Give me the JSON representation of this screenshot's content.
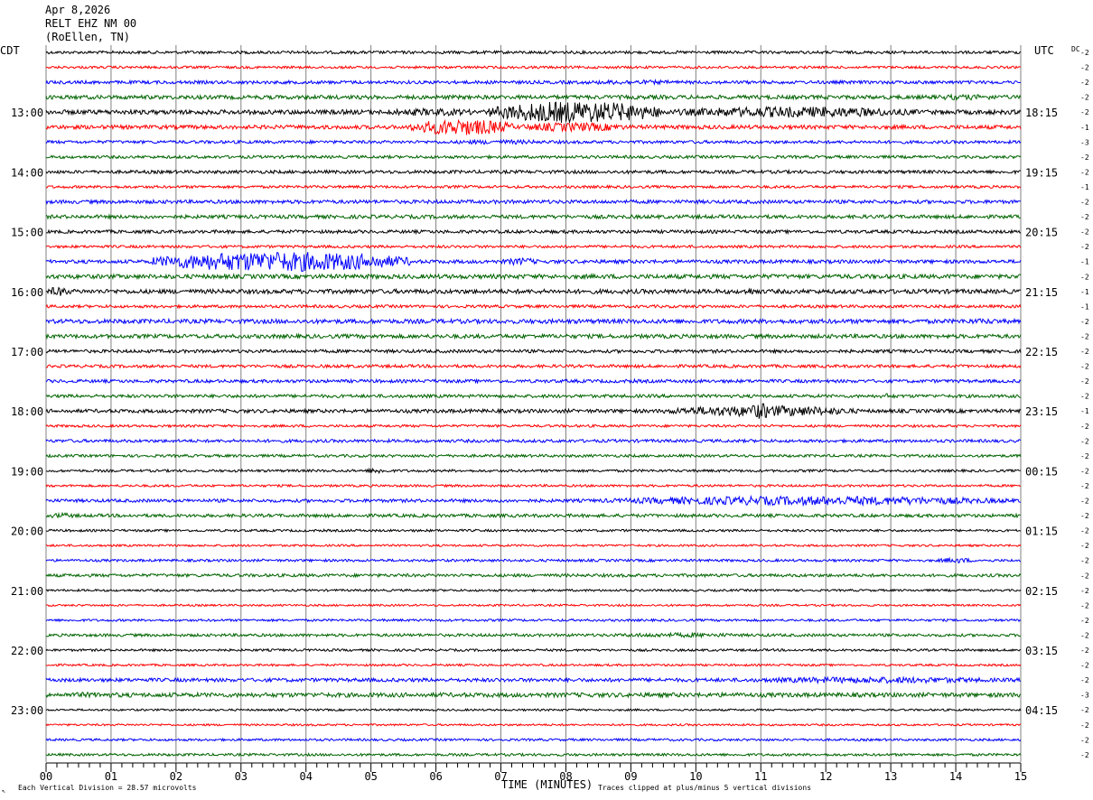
{
  "header": {
    "date": "Apr 8,2026",
    "station": "RELT EHZ NM 00",
    "location": "(RoEllen, TN)"
  },
  "labels": {
    "left_timezone": "CDT",
    "right_timezone": "UTC",
    "dc_label": "DC",
    "x_axis_title": "TIME (MINUTES)",
    "footer_left": "Each Vertical Division =   28.57 microvolts",
    "footer_right": "Traces clipped at plus/minus 5 vertical divisions",
    "corner_mark": "↖"
  },
  "chart_data": {
    "type": "line",
    "x_ticks": [
      "00",
      "01",
      "02",
      "03",
      "04",
      "05",
      "06",
      "07",
      "08",
      "09",
      "10",
      "11",
      "12",
      "13",
      "14",
      "15"
    ],
    "xlim": [
      0,
      15
    ],
    "trace_colors": [
      "#000000",
      "#ff0000",
      "#0000ff",
      "#006400"
    ],
    "left_hour_labels": [
      "13:00",
      "14:00",
      "15:00",
      "16:00",
      "17:00",
      "18:00",
      "19:00",
      "20:00",
      "21:00",
      "22:00",
      "23:00"
    ],
    "right_hour_labels": [
      "18:15",
      "19:15",
      "20:15",
      "21:15",
      "22:15",
      "23:15",
      "00:15",
      "01:15",
      "02:15",
      "03:15",
      "04:15"
    ],
    "dc_offsets": [
      "-2",
      "-2",
      "-2",
      "-2",
      "-2",
      "-1",
      "-3",
      "-2",
      "-2",
      "-1",
      "-2",
      "-2",
      "-2",
      "-2",
      "-1",
      "-2",
      "-1",
      "-1",
      "-2",
      "-2",
      "-2",
      "-2",
      "-2",
      "-2",
      "-1",
      "-2",
      "-2",
      "-2",
      "-2",
      "-2",
      "-2",
      "-2",
      "-2",
      "-2",
      "-2",
      "-2",
      "-2",
      "-2",
      "-2",
      "-2",
      "-2",
      "-2",
      "-2",
      "-3",
      "-2",
      "-2",
      "-2",
      "-2"
    ],
    "traces": [
      {
        "noise": 1.6,
        "events": []
      },
      {
        "noise": 1.4,
        "events": []
      },
      {
        "noise": 1.8,
        "events": [
          {
            "start": 8.0,
            "end": 10.0,
            "amp": 2.5
          }
        ]
      },
      {
        "noise": 2.2,
        "events": [
          {
            "start": 13.3,
            "end": 15.0,
            "amp": 3
          }
        ]
      },
      {
        "noise": 2.5,
        "events": [
          {
            "start": 6.8,
            "end": 9.5,
            "amp": 12
          },
          {
            "start": 9.5,
            "end": 13.5,
            "amp": 6
          },
          {
            "start": 5.0,
            "end": 6.8,
            "amp": 4
          }
        ]
      },
      {
        "noise": 2.2,
        "events": [
          {
            "start": 5.6,
            "end": 7.2,
            "amp": 9
          },
          {
            "start": 7.2,
            "end": 9.0,
            "amp": 5
          }
        ]
      },
      {
        "noise": 1.7,
        "events": [
          {
            "start": 6.0,
            "end": 8.0,
            "amp": 2.5
          }
        ]
      },
      {
        "noise": 1.6,
        "events": []
      },
      {
        "noise": 1.8,
        "events": []
      },
      {
        "noise": 1.5,
        "events": []
      },
      {
        "noise": 2.0,
        "events": []
      },
      {
        "noise": 2.0,
        "events": []
      },
      {
        "noise": 1.8,
        "events": []
      },
      {
        "noise": 1.5,
        "events": []
      },
      {
        "noise": 2.0,
        "events": [
          {
            "start": 1.6,
            "end": 5.6,
            "amp": 11
          },
          {
            "start": 7.0,
            "end": 7.6,
            "amp": 4
          }
        ]
      },
      {
        "noise": 2.4,
        "events": []
      },
      {
        "noise": 2.4,
        "events": [
          {
            "start": 0.0,
            "end": 0.4,
            "amp": 5
          },
          {
            "start": 10.7,
            "end": 11.0,
            "amp": 4
          }
        ]
      },
      {
        "noise": 1.6,
        "events": []
      },
      {
        "noise": 2.4,
        "events": [
          {
            "start": 13.8,
            "end": 15.0,
            "amp": 3
          }
        ]
      },
      {
        "noise": 2.2,
        "events": []
      },
      {
        "noise": 1.8,
        "events": []
      },
      {
        "noise": 1.7,
        "events": []
      },
      {
        "noise": 1.8,
        "events": [
          {
            "start": 8.5,
            "end": 9.5,
            "amp": 2
          }
        ]
      },
      {
        "noise": 1.8,
        "events": [
          {
            "start": 12.8,
            "end": 13.1,
            "amp": 3
          }
        ]
      },
      {
        "noise": 2.0,
        "events": [
          {
            "start": 9.5,
            "end": 12.5,
            "amp": 6
          },
          {
            "start": 10.8,
            "end": 11.2,
            "amp": 9
          }
        ]
      },
      {
        "noise": 1.4,
        "events": []
      },
      {
        "noise": 1.7,
        "events": []
      },
      {
        "noise": 1.5,
        "events": []
      },
      {
        "noise": 1.4,
        "events": [
          {
            "start": 4.9,
            "end": 5.3,
            "amp": 3
          }
        ]
      },
      {
        "noise": 1.3,
        "events": []
      },
      {
        "noise": 1.8,
        "events": [
          {
            "start": 8.5,
            "end": 15.0,
            "amp": 5
          }
        ]
      },
      {
        "noise": 1.8,
        "events": [
          {
            "start": 0.0,
            "end": 0.5,
            "amp": 3
          }
        ]
      },
      {
        "noise": 1.3,
        "events": []
      },
      {
        "noise": 1.2,
        "events": []
      },
      {
        "noise": 1.4,
        "events": [
          {
            "start": 13.7,
            "end": 14.3,
            "amp": 3
          }
        ]
      },
      {
        "noise": 1.7,
        "events": []
      },
      {
        "noise": 1.2,
        "events": []
      },
      {
        "noise": 1.1,
        "events": []
      },
      {
        "noise": 1.3,
        "events": []
      },
      {
        "noise": 1.6,
        "events": [
          {
            "start": 8.5,
            "end": 11.0,
            "amp": 2.5
          }
        ]
      },
      {
        "noise": 1.3,
        "events": []
      },
      {
        "noise": 1.2,
        "events": []
      },
      {
        "noise": 2.0,
        "events": [
          {
            "start": 10.5,
            "end": 15.0,
            "amp": 3.5
          }
        ]
      },
      {
        "noise": 2.4,
        "events": [
          {
            "start": 0.0,
            "end": 1.5,
            "amp": 3
          }
        ]
      },
      {
        "noise": 1.1,
        "events": []
      },
      {
        "noise": 1.1,
        "events": []
      },
      {
        "noise": 1.3,
        "events": []
      },
      {
        "noise": 1.4,
        "events": []
      }
    ]
  }
}
